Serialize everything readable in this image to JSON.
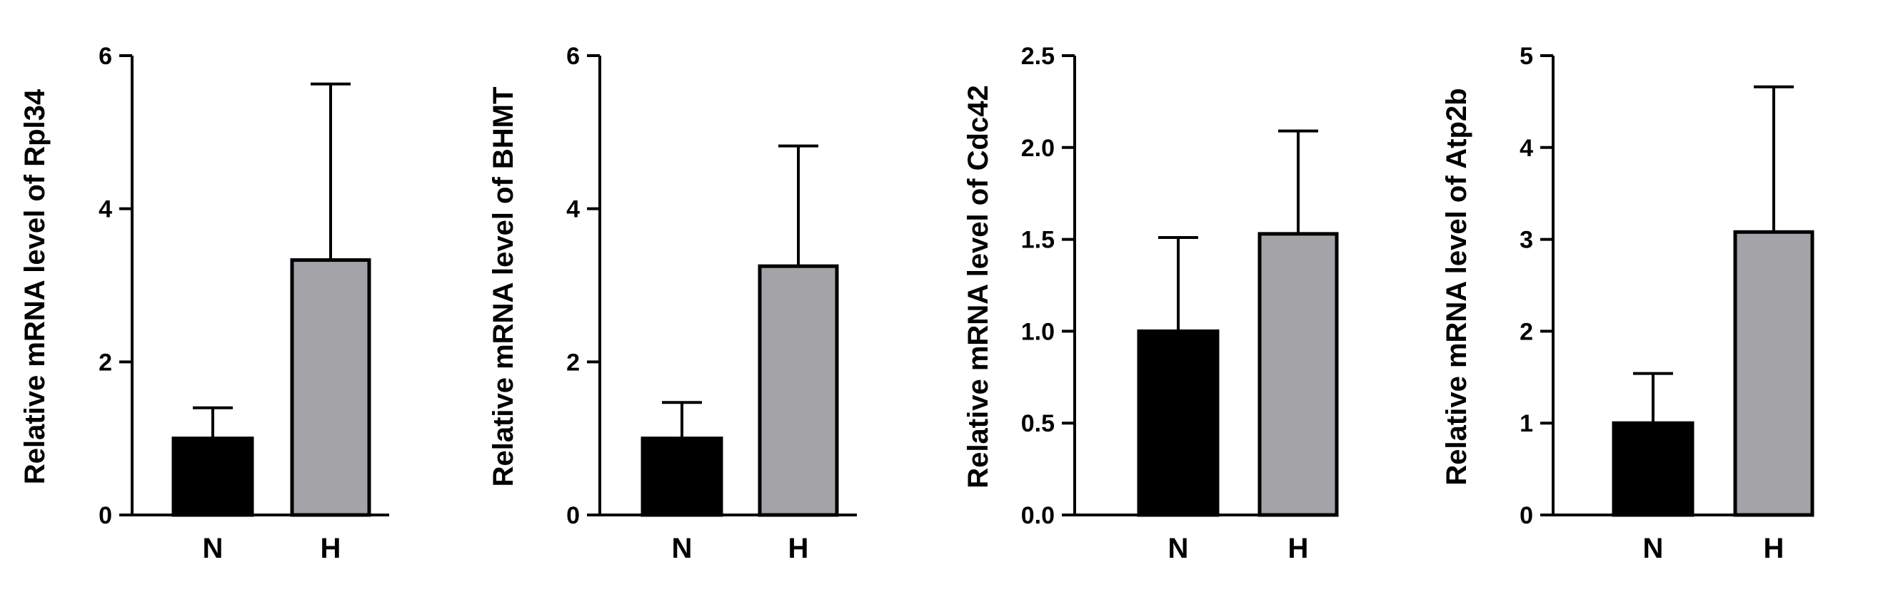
{
  "chart_data": [
    {
      "type": "bar",
      "title": "",
      "xlabel": "",
      "ylabel": "Relative mRNA level of Rpl34",
      "categories": [
        "N",
        "H"
      ],
      "values": [
        1.0,
        3.33
      ],
      "error": [
        0.4,
        2.3
      ],
      "ylim": [
        0,
        6
      ],
      "yticks": [
        "0",
        "2",
        "4",
        "6"
      ],
      "colors": [
        "#000000",
        "#a3a3a8"
      ],
      "grid": false,
      "legend": "none"
    },
    {
      "type": "bar",
      "title": "",
      "xlabel": "",
      "ylabel": "Relative mRNA level of BHMT",
      "categories": [
        "N",
        "H"
      ],
      "values": [
        1.0,
        3.25
      ],
      "error": [
        0.47,
        1.57
      ],
      "ylim": [
        0,
        6
      ],
      "yticks": [
        "0",
        "2",
        "4",
        "6"
      ],
      "colors": [
        "#000000",
        "#a3a3a8"
      ],
      "grid": false,
      "legend": "none"
    },
    {
      "type": "bar",
      "title": "",
      "xlabel": "",
      "ylabel": "Relative mRNA level of Cdc42",
      "categories": [
        "N",
        "H"
      ],
      "values": [
        1.0,
        1.53
      ],
      "error": [
        0.51,
        0.56
      ],
      "ylim": [
        0,
        2.5
      ],
      "yticks": [
        "0.0",
        "0.5",
        "1.0",
        "1.5",
        "2.0",
        "2.5"
      ],
      "colors": [
        "#000000",
        "#a3a3a8"
      ],
      "grid": false,
      "legend": "none"
    },
    {
      "type": "bar",
      "title": "",
      "xlabel": "",
      "ylabel": "Relative mRNA level of Atp2b",
      "categories": [
        "N",
        "H"
      ],
      "values": [
        1.0,
        3.08
      ],
      "error": [
        0.54,
        1.58
      ],
      "ylim": [
        0,
        5
      ],
      "yticks": [
        "0",
        "1",
        "2",
        "3",
        "4",
        "5"
      ],
      "colors": [
        "#000000",
        "#a3a3a8"
      ],
      "grid": false,
      "legend": "none"
    }
  ]
}
